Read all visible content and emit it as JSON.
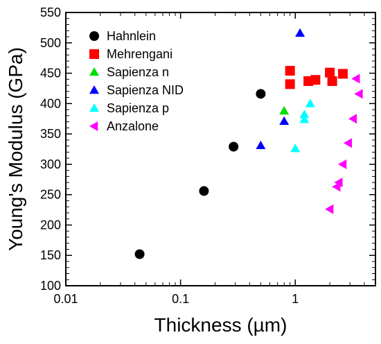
{
  "chart_data": {
    "type": "scatter",
    "xlabel": "Thickness (µm)",
    "ylabel": "Young's Modulus (GPa)",
    "xscale": "log",
    "xlim": [
      0.01,
      5
    ],
    "ylim": [
      100,
      550
    ],
    "x_ticks": [
      {
        "value": 0.01,
        "label": "0.01"
      },
      {
        "value": 0.1,
        "label": "0.1"
      },
      {
        "value": 1,
        "label": "1"
      }
    ],
    "y_ticks": [
      {
        "value": 100,
        "label": "100"
      },
      {
        "value": 150,
        "label": "150"
      },
      {
        "value": 200,
        "label": "200"
      },
      {
        "value": 250,
        "label": "250"
      },
      {
        "value": 300,
        "label": "300"
      },
      {
        "value": 350,
        "label": "350"
      },
      {
        "value": 400,
        "label": "400"
      },
      {
        "value": 450,
        "label": "450"
      },
      {
        "value": 500,
        "label": "500"
      },
      {
        "value": 550,
        "label": "550"
      }
    ],
    "grid": false,
    "legend_position": "top-left",
    "series": [
      {
        "name": "Hahnlein",
        "marker": "circle",
        "color": "#000000",
        "points": [
          [
            0.044,
            152
          ],
          [
            0.16,
            256
          ],
          [
            0.29,
            329
          ],
          [
            0.5,
            416
          ]
        ]
      },
      {
        "name": "Mehrengani",
        "marker": "square",
        "color": "#ff0000",
        "points": [
          [
            0.9,
            454
          ],
          [
            0.9,
            432
          ],
          [
            1.3,
            437
          ],
          [
            1.5,
            439
          ],
          [
            2.0,
            451
          ],
          [
            2.1,
            437
          ],
          [
            2.6,
            449
          ]
        ]
      },
      {
        "name": "Sapienza n",
        "marker": "triangle-up",
        "color": "#00dd00",
        "points": [
          [
            0.8,
            388
          ]
        ]
      },
      {
        "name": "Sapienza NID",
        "marker": "triangle-up",
        "color": "#0000ff",
        "points": [
          [
            1.1,
            516
          ],
          [
            0.5,
            331
          ],
          [
            0.8,
            371
          ]
        ]
      },
      {
        "name": "Sapienza p",
        "marker": "triangle-up",
        "color": "#00ffff",
        "points": [
          [
            1.0,
            326
          ],
          [
            1.2,
            374
          ],
          [
            1.2,
            382
          ],
          [
            1.35,
            400
          ]
        ]
      },
      {
        "name": "Anzalone",
        "marker": "triangle-left",
        "color": "#ff00ff",
        "points": [
          [
            3.4,
            441
          ],
          [
            3.6,
            416
          ],
          [
            3.2,
            375
          ],
          [
            2.9,
            335
          ],
          [
            2.6,
            300
          ],
          [
            2.4,
            270
          ],
          [
            2.3,
            263
          ],
          [
            2.0,
            226
          ]
        ]
      }
    ]
  }
}
